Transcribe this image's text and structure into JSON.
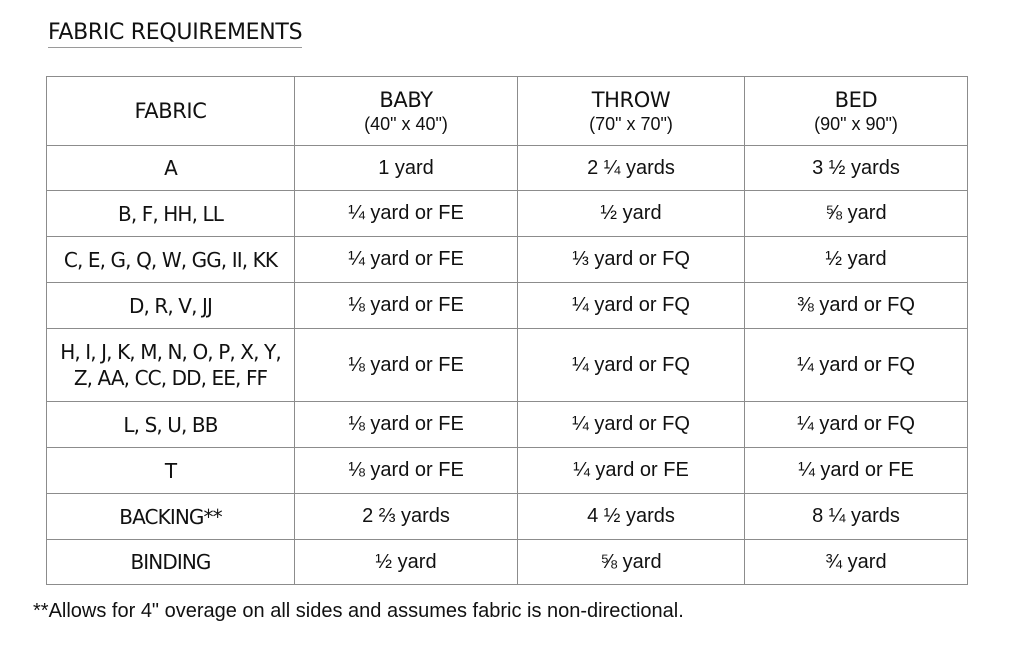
{
  "title": "FABRIC REQUIREMENTS",
  "table": {
    "header": {
      "fabric": "FABRIC",
      "sizes": [
        {
          "name": "BABY",
          "dims": "(40\" x 40\")"
        },
        {
          "name": "THROW",
          "dims": "(70\" x 70\")"
        },
        {
          "name": "BED",
          "dims": "(90\" x 90\")"
        }
      ]
    },
    "rows": [
      {
        "fabric": [
          "A"
        ],
        "baby": "1 yard",
        "throw": "2 ¼ yards",
        "bed": "3 ½ yards"
      },
      {
        "fabric": [
          "B, F, HH, LL"
        ],
        "baby": "¼ yard or FE",
        "throw": "½ yard",
        "bed": "⅝ yard"
      },
      {
        "fabric": [
          "C, E, G, Q, W, GG, II, KK"
        ],
        "baby": "¼ yard or FE",
        "throw": "⅓ yard or FQ",
        "bed": "½ yard"
      },
      {
        "fabric": [
          "D, R, V, JJ"
        ],
        "baby": "⅛ yard or FE",
        "throw": "¼ yard or FQ",
        "bed": "⅜ yard or FQ"
      },
      {
        "fabric": [
          "H, I, J, K, M, N, O, P, X, Y,",
          "Z, AA, CC, DD, EE, FF"
        ],
        "baby": "⅛ yard or FE",
        "throw": "¼ yard or FQ",
        "bed": "¼ yard or FQ"
      },
      {
        "fabric": [
          "L, S, U, BB"
        ],
        "baby": "⅛ yard or FE",
        "throw": "¼ yard or FQ",
        "bed": "¼ yard or FQ"
      },
      {
        "fabric": [
          "T"
        ],
        "baby": "⅛ yard or FE",
        "throw": "¼ yard or FE",
        "bed": "¼ yard or FE"
      },
      {
        "fabric": [
          "BACKING**"
        ],
        "baby": "2 ⅔ yards",
        "throw": "4 ½ yards",
        "bed": "8 ¼ yards"
      },
      {
        "fabric": [
          "BINDING"
        ],
        "baby": "½ yard",
        "throw": "⅝ yard",
        "bed": "¾ yard"
      }
    ]
  },
  "footnote": "**Allows for 4\" overage on all sides and assumes fabric is non-directional."
}
